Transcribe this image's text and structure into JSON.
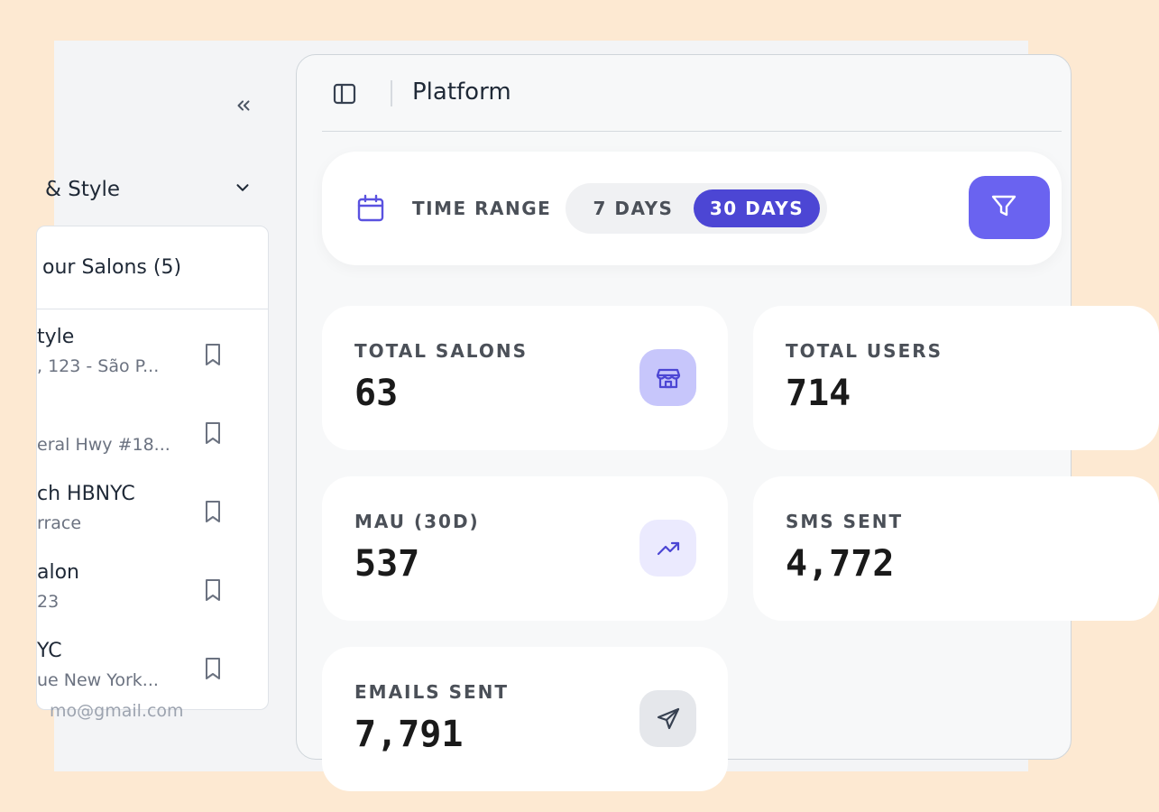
{
  "sidebar": {
    "workspace": "& Style",
    "salons_header": "our Salons (5)",
    "salons": [
      {
        "name": "tyle",
        "address": ", 123 - São P..."
      },
      {
        "name": "",
        "address": "eral Hwy #18..."
      },
      {
        "name": "ch HBNYC",
        "address": "rrace"
      },
      {
        "name": "alon",
        "address": "23"
      },
      {
        "name": "YC",
        "address": "ue New York..."
      }
    ],
    "email": "mo@gmail.com"
  },
  "header": {
    "title": "Platform"
  },
  "filters": {
    "time_range_label": "TIME RANGE",
    "options": [
      "7 DAYS",
      "30 DAYS"
    ],
    "selected": "30 DAYS"
  },
  "stats": [
    {
      "label": "TOTAL SALONS",
      "value": "63",
      "icon": "store-icon"
    },
    {
      "label": "TOTAL USERS",
      "value": "714"
    },
    {
      "label": "MAU (30D)",
      "value": "537",
      "icon": "trending-up-icon"
    },
    {
      "label": "SMS SENT",
      "value": "4,772"
    },
    {
      "label": "EMAILS SENT",
      "value": "7,791",
      "icon": "send-icon"
    }
  ],
  "colors": {
    "accent": "#4c46d4",
    "filter_button": "#6a63f0",
    "background": "#fde9d2"
  }
}
